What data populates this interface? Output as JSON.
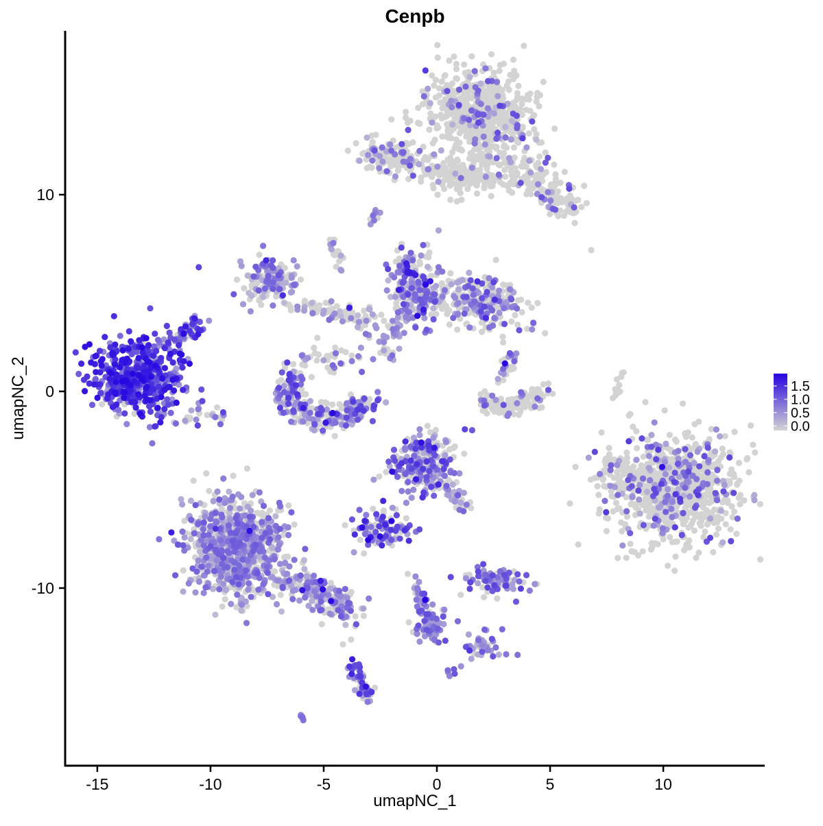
{
  "title": "Cenpb",
  "chart_data": {
    "type": "scatter",
    "title": "Cenpb",
    "xlabel": "umapNC_1",
    "ylabel": "umapNC_2",
    "x_ticks": [
      -15,
      -10,
      -5,
      0,
      5,
      10
    ],
    "y_ticks": [
      10,
      0,
      -10
    ],
    "x_range": [
      -16.42,
      14.48
    ],
    "y_range": [
      -19.03,
      18.33
    ],
    "grid": false,
    "panel_background": "#FFFFFF",
    "point_radius": 4.6,
    "seed": 9,
    "legend": {
      "position": "right",
      "ticks": [
        "1.5",
        "1.0",
        "0.5",
        "0.0"
      ],
      "vmax": 1.75,
      "low_color": "#D3D3D3",
      "high_color": "#2605E0"
    },
    "clusters": [
      {
        "name": "top-main",
        "type": "blob",
        "cx": 1.91,
        "cy": 14.15,
        "sx": 1.2,
        "sy": 1.0,
        "rot": -20,
        "n": 650,
        "gray": 0.86,
        "v": [
          0.2,
          1.3
        ],
        "hi": 0.01
      },
      {
        "name": "top-lower",
        "type": "blob",
        "cx": 1.6,
        "cy": 11.0,
        "sx": 0.85,
        "sy": 0.55,
        "rot": 0,
        "n": 130,
        "gray": 0.92,
        "v": [
          0.2,
          1.0
        ]
      },
      {
        "name": "top-arm",
        "type": "chain",
        "pts": [
          [
            3.3,
            11.7
          ],
          [
            4.6,
            10.5
          ],
          [
            5.9,
            9.3
          ]
        ],
        "jit": 0.45,
        "n": 150,
        "gray": 0.85,
        "v": [
          0.3,
          1.2
        ],
        "hi": 0.01
      },
      {
        "name": "top-left-wing",
        "type": "blob",
        "cx": -1.9,
        "cy": 11.9,
        "sx": 0.9,
        "sy": 0.45,
        "rot": -8,
        "n": 150,
        "gray": 0.78,
        "v": [
          0.3,
          1.2
        ]
      },
      {
        "name": "top-bridge",
        "type": "chain",
        "pts": [
          [
            -0.5,
            11.2
          ],
          [
            1.2,
            11.05
          ]
        ],
        "jit": 0.2,
        "n": 40,
        "gray": 0.95,
        "v": [
          0.3,
          0.8
        ]
      },
      {
        "name": "streak-upper-mid",
        "type": "chain",
        "pts": [
          [
            -2.85,
            8.7
          ],
          [
            -2.5,
            9.35
          ]
        ],
        "jit": 0.1,
        "n": 9,
        "gray": 0.45,
        "v": [
          0.4,
          1.0
        ]
      },
      {
        "name": "chain-left-upper",
        "type": "chain",
        "pts": [
          [
            -4.7,
            7.8
          ],
          [
            -4.4,
            6.9
          ],
          [
            -4.05,
            6.1
          ]
        ],
        "jit": 0.15,
        "n": 22,
        "gray": 0.6,
        "v": [
          0.3,
          0.9
        ]
      },
      {
        "name": "loop-blob",
        "type": "blob",
        "cx": -7.33,
        "cy": 5.68,
        "sx": 0.6,
        "sy": 0.55,
        "rot": 15,
        "n": 150,
        "gray": 0.5,
        "v": [
          0.2,
          1.1
        ],
        "hi": 0.02
      },
      {
        "name": "loop-chain",
        "type": "chain",
        "pts": [
          [
            -6.4,
            4.6
          ],
          [
            -5.1,
            4.15
          ],
          [
            -3.6,
            3.8
          ],
          [
            -2.7,
            3.6
          ]
        ],
        "jit": 0.3,
        "n": 85,
        "gray": 0.6,
        "v": [
          0.2,
          1.0
        ],
        "hi": 0.02
      },
      {
        "name": "center-left",
        "type": "blob",
        "cx": -0.97,
        "cy": 5.26,
        "sx": 0.55,
        "sy": 0.95,
        "rot": 8,
        "n": 210,
        "gray": 0.42,
        "v": [
          0.2,
          1.2
        ],
        "hi": 0.03
      },
      {
        "name": "center-dark-spot",
        "type": "blob",
        "cx": -1.25,
        "cy": 6.1,
        "sx": 0.22,
        "sy": 0.22,
        "rot": 0,
        "n": 14,
        "gray": 0.05,
        "v": [
          0.8,
          1.7
        ],
        "p": 1,
        "hi": 0.3
      },
      {
        "name": "center-right",
        "type": "blob",
        "cx": 1.9,
        "cy": 4.56,
        "sx": 0.9,
        "sy": 0.62,
        "rot": -10,
        "n": 270,
        "gray": 0.62,
        "v": [
          0.3,
          1.2
        ],
        "hi": 0.02
      },
      {
        "name": "center-arm",
        "type": "chain",
        "pts": [
          [
            -2.35,
            2.4
          ],
          [
            -1.75,
            3.5
          ],
          [
            -1.3,
            4.2
          ]
        ],
        "jit": 0.22,
        "n": 45,
        "gray": 0.5,
        "v": [
          0.2,
          0.9
        ]
      },
      {
        "name": "left-dense",
        "type": "blob",
        "cx": -13.24,
        "cy": 0.8,
        "sx": 0.95,
        "sy": 0.95,
        "rot": -10,
        "n": 520,
        "gray": 0.07,
        "v": [
          0.4,
          1.7
        ],
        "p": 0.9,
        "hi": 0.12
      },
      {
        "name": "left-dense-arm",
        "type": "chain",
        "pts": [
          [
            -11.9,
            2.2
          ],
          [
            -11.15,
            2.9
          ],
          [
            -10.4,
            3.5
          ]
        ],
        "jit": 0.22,
        "n": 50,
        "gray": 0.12,
        "v": [
          0.5,
          1.6
        ],
        "p": 1
      },
      {
        "name": "left-below-sparse",
        "type": "chain",
        "pts": [
          [
            -12.3,
            -0.9
          ],
          [
            -10.6,
            -1.4
          ],
          [
            -9.3,
            -1.0
          ]
        ],
        "jit": 0.33,
        "n": 32,
        "gray": 0.35,
        "v": [
          0.3,
          1.2
        ]
      },
      {
        "name": "cup",
        "type": "chain",
        "pts": [
          [
            -6.45,
            0.9
          ],
          [
            -6.6,
            -0.15
          ],
          [
            -6.0,
            -1.0
          ],
          [
            -4.9,
            -1.45
          ],
          [
            -3.85,
            -1.2
          ],
          [
            -3.1,
            -0.5
          ]
        ],
        "jit": 0.36,
        "n": 270,
        "gray": 0.42,
        "v": [
          0.3,
          1.35
        ],
        "hi": 0.03
      },
      {
        "name": "cup-upper",
        "type": "blob",
        "cx": -4.8,
        "cy": 1.65,
        "sx": 0.85,
        "sy": 0.5,
        "rot": 0,
        "n": 42,
        "gray": 0.6,
        "v": [
          0.3,
          1.0
        ]
      },
      {
        "name": "midright-crescent",
        "type": "chain",
        "pts": [
          [
            2.05,
            -0.5
          ],
          [
            2.95,
            -0.95
          ],
          [
            3.95,
            -0.65
          ],
          [
            4.6,
            0.0
          ]
        ],
        "jit": 0.24,
        "n": 135,
        "gray": 0.9,
        "v": [
          0.5,
          1.1
        ]
      },
      {
        "name": "midright-up",
        "type": "chain",
        "pts": [
          [
            2.75,
            0.5
          ],
          [
            3.2,
            1.4
          ],
          [
            3.5,
            1.95
          ]
        ],
        "jit": 0.15,
        "n": 28,
        "gray": 0.55,
        "v": [
          0.4,
          1.1
        ],
        "hi": 0.05
      },
      {
        "name": "streak-right",
        "type": "chain",
        "pts": [
          [
            7.95,
            -0.25
          ],
          [
            8.2,
            1.1
          ]
        ],
        "jit": 0.08,
        "n": 14,
        "gray": 0.9,
        "v": [
          0.6,
          1.0
        ]
      },
      {
        "name": "right-big",
        "type": "blob",
        "cx": 10.55,
        "cy": -4.9,
        "sx": 1.45,
        "sy": 1.4,
        "rot": -25,
        "n": 880,
        "gray": 0.8,
        "v": [
          0.3,
          1.3
        ],
        "hi": 0.01
      },
      {
        "name": "right-tail",
        "type": "blob",
        "cx": 7.8,
        "cy": -4.2,
        "sx": 0.5,
        "sy": 0.6,
        "rot": 0,
        "n": 48,
        "gray": 0.85,
        "v": [
          0.4,
          1.0
        ]
      },
      {
        "name": "center-bottom",
        "type": "blob",
        "cx": -0.67,
        "cy": -3.52,
        "sx": 0.68,
        "sy": 0.78,
        "rot": 0,
        "n": 230,
        "gray": 0.3,
        "v": [
          0.3,
          1.35
        ],
        "hi": 0.04
      },
      {
        "name": "center-bottom-arm",
        "type": "chain",
        "pts": [
          [
            0.2,
            -4.6
          ],
          [
            0.9,
            -5.4
          ],
          [
            1.25,
            -6.0
          ]
        ],
        "jit": 0.2,
        "n": 42,
        "gray": 0.55,
        "v": [
          0.3,
          1.0
        ]
      },
      {
        "name": "small-dense",
        "type": "blob",
        "cx": -2.33,
        "cy": -7.1,
        "sx": 0.7,
        "sy": 0.5,
        "rot": -15,
        "n": 95,
        "gray": 0.22,
        "v": [
          0.4,
          1.5
        ],
        "hi": 0.06
      },
      {
        "name": "bottom-left-main",
        "type": "blob",
        "cx": -8.85,
        "cy": -7.9,
        "sx": 1.05,
        "sy": 1.35,
        "rot": 12,
        "n": 800,
        "gray": 0.35,
        "v": [
          0.2,
          1.05
        ],
        "p": 1.1,
        "hi": 0.008
      },
      {
        "name": "bottom-left-arm",
        "type": "chain",
        "pts": [
          [
            -7.1,
            -9.2
          ],
          [
            -5.7,
            -10.05
          ],
          [
            -4.4,
            -10.7
          ],
          [
            -3.7,
            -11.1
          ]
        ],
        "jit": 0.4,
        "n": 210,
        "gray": 0.38,
        "v": [
          0.2,
          1.05
        ],
        "hi": 0.01
      },
      {
        "name": "stream-center",
        "type": "chain",
        "pts": [
          [
            -1.03,
            -9.5
          ],
          [
            -0.78,
            -10.5
          ],
          [
            -0.45,
            -11.35
          ],
          [
            -0.2,
            -12.2
          ]
        ],
        "jit": 0.17,
        "n": 58,
        "gray": 0.3,
        "v": [
          0.4,
          1.2
        ],
        "hi": 0.04
      },
      {
        "name": "stream-blob",
        "type": "blob",
        "cx": -0.27,
        "cy": -12.0,
        "sx": 0.45,
        "sy": 0.5,
        "rot": 0,
        "n": 52,
        "gray": 0.28,
        "v": [
          0.4,
          1.2
        ],
        "hi": 0.04
      },
      {
        "name": "cluster-o",
        "type": "blob",
        "cx": 2.58,
        "cy": -9.65,
        "sx": 0.75,
        "sy": 0.38,
        "rot": -5,
        "n": 85,
        "gray": 0.2,
        "v": [
          0.4,
          1.25
        ],
        "hi": 0.03
      },
      {
        "name": "cluster-p",
        "type": "blob",
        "cx": 2.15,
        "cy": -12.85,
        "sx": 0.5,
        "sy": 0.4,
        "rot": 0,
        "n": 40,
        "gray": 0.35,
        "v": [
          0.3,
          1.1
        ],
        "hi": 0.03
      },
      {
        "name": "pair-q",
        "type": "blob",
        "cx": 0.55,
        "cy": -14.25,
        "sx": 0.14,
        "sy": 0.14,
        "rot": 0,
        "n": 5,
        "gray": 0.1,
        "v": [
          0.6,
          1.1
        ]
      },
      {
        "name": "crescent-r",
        "type": "chain",
        "pts": [
          [
            -3.75,
            -13.85
          ],
          [
            -3.52,
            -14.45
          ],
          [
            -3.2,
            -15.0
          ],
          [
            -3.05,
            -15.6
          ]
        ],
        "jit": 0.15,
        "n": 62,
        "gray": 0.28,
        "v": [
          0.4,
          1.35
        ],
        "hi": 0.05
      },
      {
        "name": "pair-s",
        "type": "chain",
        "pts": [
          [
            -6.05,
            -16.4
          ],
          [
            -5.9,
            -16.7
          ]
        ],
        "jit": 0.08,
        "n": 6,
        "gray": 0.15,
        "v": [
          0.5,
          1.0
        ]
      },
      {
        "name": "mini-chain-center",
        "type": "chain",
        "pts": [
          [
            -2.48,
            2.05
          ],
          [
            -1.95,
            1.65
          ]
        ],
        "jit": 0.1,
        "n": 10,
        "gray": 0.5,
        "v": [
          0.3,
          0.9
        ]
      }
    ],
    "singles": [
      {
        "x": -10.52,
        "y": 6.31,
        "v": 1.2
      },
      {
        "x": 6.82,
        "y": 7.18,
        "v": 0
      },
      {
        "x": -1.27,
        "y": -5.09,
        "v": 0.7
      },
      {
        "x": -2.79,
        "y": -4.49,
        "v": 0.5
      },
      {
        "x": -4.15,
        "y": -12.86,
        "v": 0
      },
      {
        "x": -3.79,
        "y": -12.62,
        "v": 0
      },
      {
        "x": -0.52,
        "y": -10.6,
        "v": 1.75
      },
      {
        "x": -3.74,
        "y": -13.62,
        "v": 1.55
      }
    ]
  }
}
